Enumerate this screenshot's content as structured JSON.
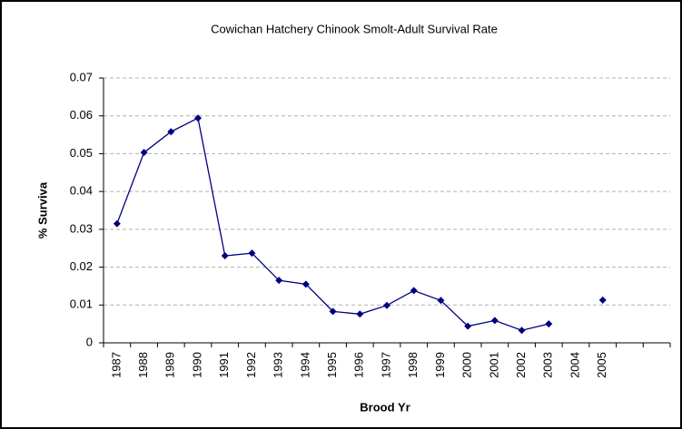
{
  "chart_data": {
    "type": "line",
    "title": "Cowichan Hatchery Chinook Smolt-Adult Survival Rate",
    "x_label": "Brood Yr",
    "y_label": "% Surviva",
    "categories": [
      "1987",
      "1988",
      "1989",
      "1990",
      "1991",
      "1992",
      "1993",
      "1994",
      "1995",
      "1996",
      "1997",
      "1998",
      "1999",
      "2000",
      "2001",
      "2002",
      "2003",
      "2004",
      "2005",
      null,
      null
    ],
    "series": [
      {
        "name": "Survival",
        "color": "#000080",
        "values": [
          0.0315,
          0.0503,
          0.0558,
          0.0594,
          0.023,
          0.0237,
          0.0165,
          0.0155,
          0.0083,
          0.0076,
          0.0099,
          0.0138,
          0.0112,
          0.0044,
          0.0059,
          0.0033,
          0.005,
          null,
          0.0113,
          null,
          null
        ]
      }
    ],
    "ylim": [
      0,
      0.07
    ],
    "yticks": [
      0,
      0.01,
      0.02,
      0.03,
      0.04,
      0.05,
      0.06,
      0.07
    ],
    "grid": true
  }
}
